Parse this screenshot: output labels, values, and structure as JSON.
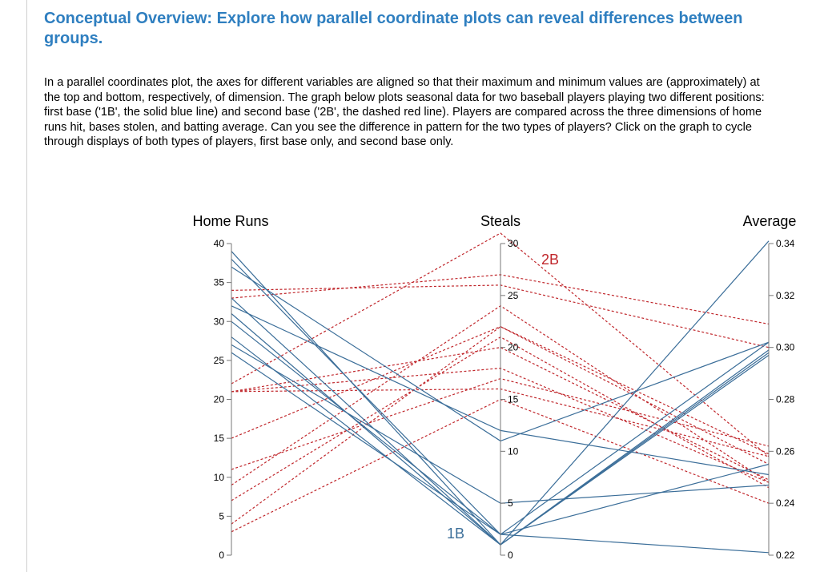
{
  "page": {
    "title": "Conceptual Overview: Explore how parallel coordinate plots can reveal differences between groups.",
    "intro": "In a parallel coordinates plot, the axes for different variables are aligned so that their maximum and minimum values are (approximately) at the top and bottom, respectively, of dimension. The graph below plots seasonal data for two baseball players playing two different positions: first base ('1B', the solid blue line) and second base ('2B', the dashed red line). Players are compared across the three dimensions of home runs hit, bases stolen, and batting average. Can you see the difference in pattern for the two types of players? Click on the graph to cycle through displays of both types of players, first base only, and second base only."
  },
  "colors": {
    "title": "#2f7fc0",
    "first_base": "#3b6e99",
    "second_base": "#c0262b",
    "axis": "#777777"
  },
  "chart_data": {
    "type": "parallel_coordinates",
    "axes": [
      {
        "name": "Home Runs",
        "range": [
          0,
          40
        ],
        "ticks": [
          "0",
          "5",
          "10",
          "15",
          "20",
          "25",
          "30",
          "35",
          "40"
        ],
        "tick_side": "left"
      },
      {
        "name": "Steals",
        "range": [
          0,
          30
        ],
        "ticks": [
          "0",
          "5",
          "10",
          "15",
          "20",
          "25",
          "30"
        ],
        "tick_side": "right"
      },
      {
        "name": "Average",
        "range": [
          0.22,
          0.34
        ],
        "ticks": [
          "0.22",
          "0.24",
          "0.26",
          "0.28",
          "0.30",
          "0.32",
          "0.34"
        ],
        "tick_side": "right"
      }
    ],
    "series": [
      {
        "name": "1B",
        "style": "solid",
        "color": "#3b6e99",
        "lines": [
          [
            39,
            1,
            0.341
          ],
          [
            38,
            2,
            0.221
          ],
          [
            37,
            11,
            0.302
          ],
          [
            33,
            1,
            0.297
          ],
          [
            32,
            12,
            0.251
          ],
          [
            31,
            1,
            0.299
          ],
          [
            30,
            2,
            0.302
          ],
          [
            28,
            1,
            0.298
          ],
          [
            27,
            5,
            0.247
          ],
          [
            26,
            2,
            0.255
          ]
        ]
      },
      {
        "name": "2B",
        "style": "dashed",
        "color": "#c0262b",
        "lines": [
          [
            33,
            27,
            0.309
          ],
          [
            34,
            26,
            0.3
          ],
          [
            22,
            31,
            0.258
          ],
          [
            21,
            20,
            0.249
          ],
          [
            21,
            18,
            0.248
          ],
          [
            21,
            16,
            0.258
          ],
          [
            15,
            22,
            0.259
          ],
          [
            11,
            17,
            0.262
          ],
          [
            9,
            24,
            0.248
          ],
          [
            7,
            21,
            0.246
          ],
          [
            4,
            22,
            0.255
          ],
          [
            3,
            15,
            0.24
          ]
        ]
      }
    ],
    "labels": {
      "first_base_tag": "1B",
      "second_base_tag": "2B"
    }
  }
}
